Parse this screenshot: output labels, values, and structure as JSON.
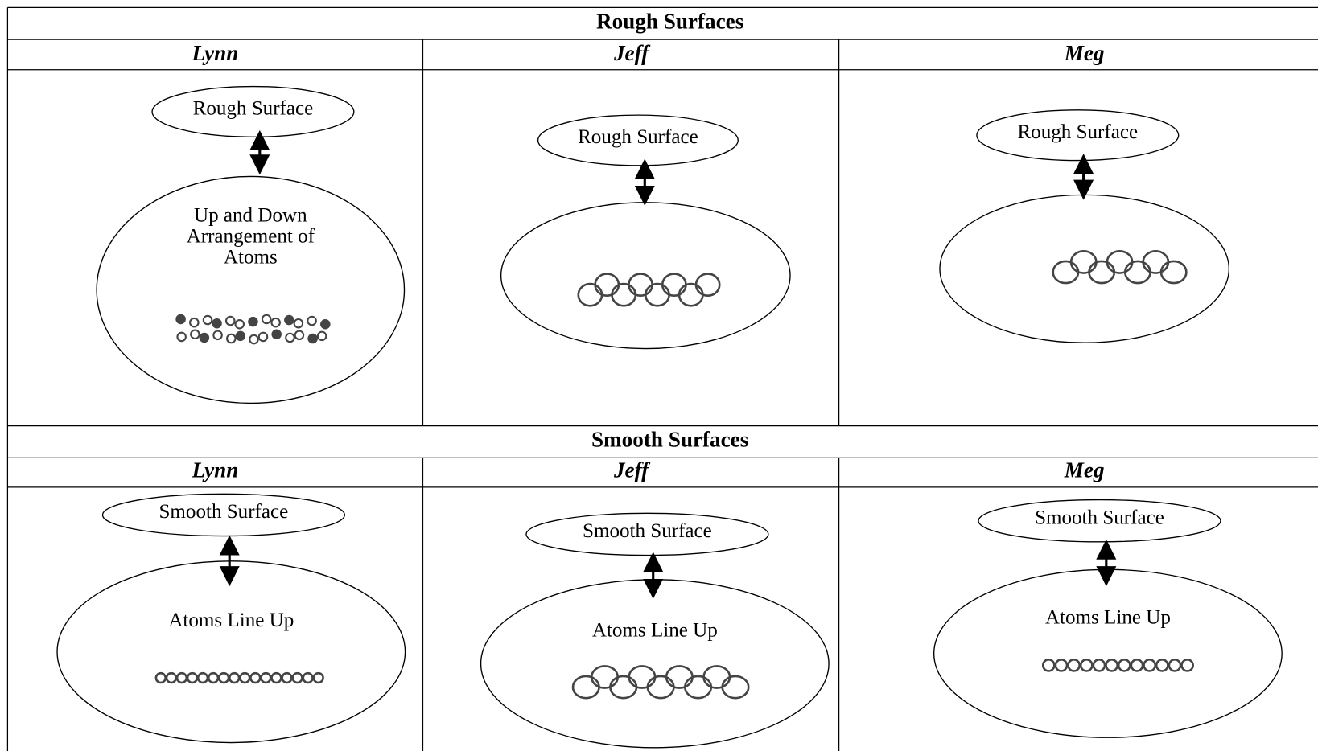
{
  "sections": [
    {
      "title": "Rough Surfaces",
      "columns": [
        {
          "name": "Lynn",
          "surface": "Rough Surface",
          "description": [
            "Up and Down",
            "Arrangement of",
            "Atoms"
          ]
        },
        {
          "name": "Jeff",
          "surface": "Rough Surface"
        },
        {
          "name": "Meg",
          "surface": "Rough Surface"
        }
      ]
    },
    {
      "title": "Smooth Surfaces",
      "columns": [
        {
          "name": "Lynn",
          "surface": "Smooth Surface",
          "description": [
            "Atoms Line Up"
          ]
        },
        {
          "name": "Jeff",
          "surface": "Smooth Surface",
          "description": [
            "Atoms Line Up"
          ]
        },
        {
          "name": "Meg",
          "surface": "Smooth Surface",
          "description": [
            "Atoms Line Up"
          ]
        }
      ]
    }
  ]
}
